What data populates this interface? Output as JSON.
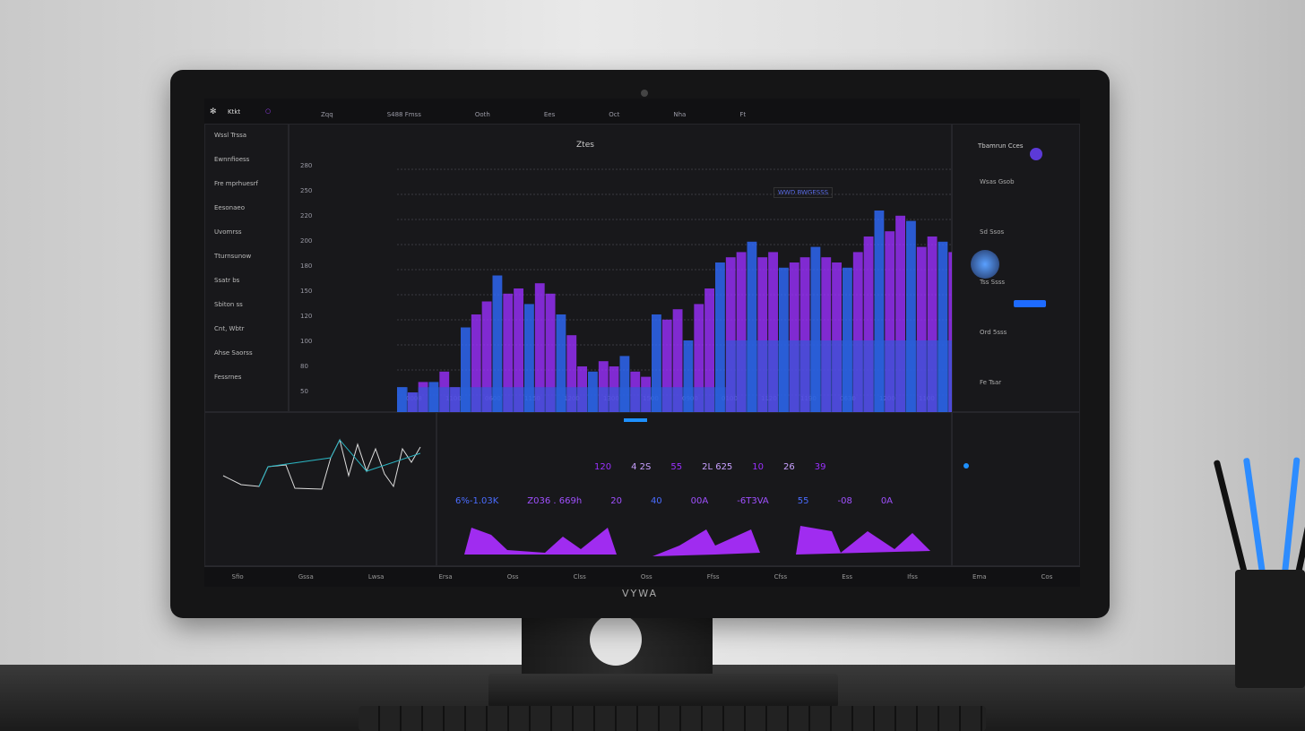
{
  "brand": "VYWA",
  "topbar": {
    "app": "Ktkt",
    "items": [
      "Zqq",
      "S&#8203;488 Fmss",
      "Ooth",
      "Ees",
      "Oct",
      "Nha",
      "Ft"
    ]
  },
  "sidebar": {
    "items": [
      "Wssl Trssa",
      "Ewnnfioess",
      "Fre mprhuesrf",
      "Eesonaeo",
      "Uvomrss",
      "Tturnsunow",
      "Ssatr bs",
      "Sbiton ss",
      "Cnt, Wbtr",
      "Ahse Saorss",
      "Fessrnes"
    ]
  },
  "main": {
    "label": "Ztes",
    "legend": "WWD BWGESSS",
    "y_ticks": [
      "280",
      "250",
      "220",
      "200",
      "180",
      "150",
      "120",
      "100",
      "80",
      "50"
    ],
    "x_ticks": [
      "0008",
      "1100",
      "0600",
      "1150",
      "1200",
      "1300",
      "1500",
      "0900",
      "0100",
      "1120",
      "1190",
      "0630",
      "1200",
      "1100",
      "0000",
      "1200"
    ],
    "chart_data": {
      "type": "bar",
      "values": [
        12,
        10,
        14,
        14,
        18,
        12,
        35,
        40,
        45,
        55,
        48,
        50,
        44,
        52,
        48,
        40,
        32,
        20,
        18,
        22,
        20,
        24,
        18,
        16,
        40,
        38,
        42,
        30,
        44,
        50,
        60,
        62,
        64,
        68,
        62,
        64,
        58,
        60,
        62,
        66,
        62,
        60,
        58,
        64,
        70,
        80,
        72,
        78,
        76,
        66,
        70,
        68,
        64,
        62,
        56,
        50,
        52,
        50,
        48,
        46
      ]
    }
  },
  "right": {
    "title": "Tbamrun Cces",
    "rows": [
      "Wsas Gsob",
      "Sd Ssos",
      "Tss Ssss",
      "Ord 5sss",
      "Fe Tsar"
    ]
  },
  "stats": {
    "row1": [
      "120",
      "4&nbsp;2S",
      "55",
      "2L 625",
      "10",
      "26",
      "39"
    ],
    "row2": [
      "6%-1.03K",
      "Z036 . 669h",
      "20",
      "40",
      "00A",
      "-6T3VA",
      "55",
      "-08",
      "0A"
    ]
  },
  "bottombar": [
    "Sfio",
    "Gssa",
    "Lwsa",
    "Ersa",
    "Oss",
    "Clss",
    "Oss",
    "Ffss",
    "Cfss",
    "Ess",
    "Ifss",
    "Ema",
    "Cos"
  ],
  "colors": {
    "purple": "#9b30ff",
    "blue": "#2f6bff",
    "accent": "#1e90ff"
  }
}
